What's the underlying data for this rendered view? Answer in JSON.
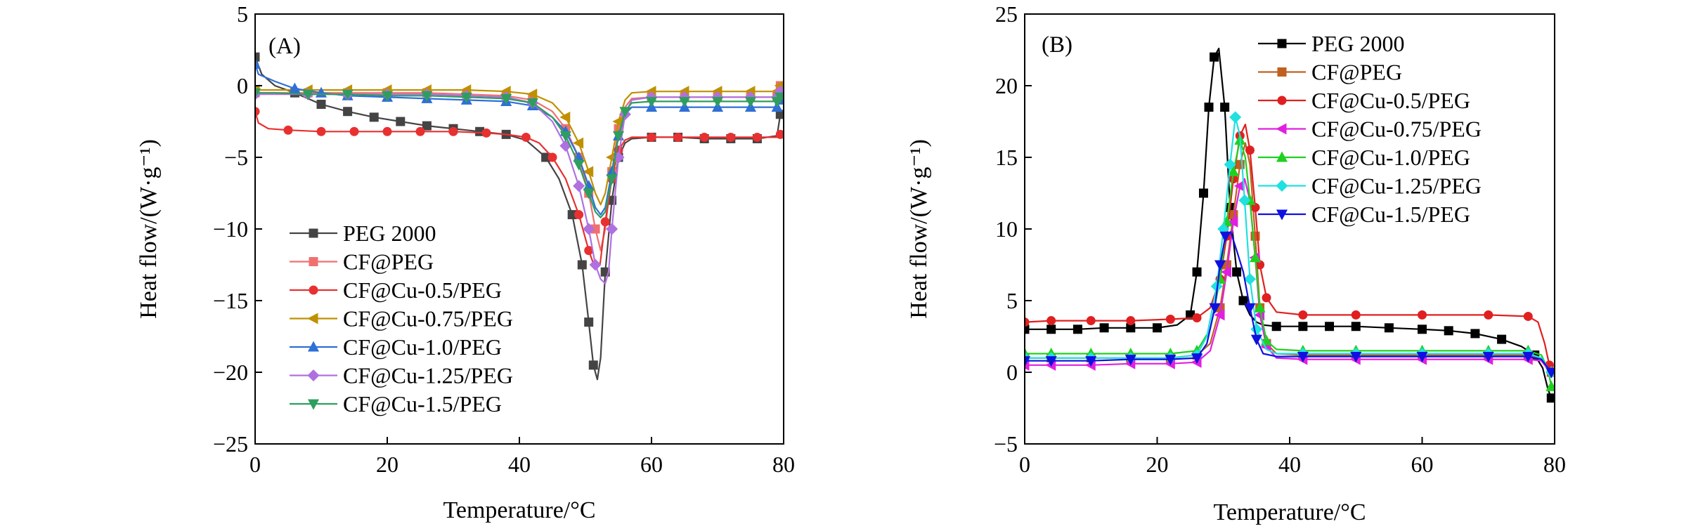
{
  "chart_data": [
    {
      "type": "line",
      "panel": "(A)",
      "xlabel": "Temperature/°C",
      "ylabel": "Heat flow/(W·g⁻¹)",
      "xlim": [
        0,
        80
      ],
      "ylim": [
        -25,
        5
      ],
      "xticks": [
        0,
        20,
        40,
        60,
        80
      ],
      "yticks": [
        5,
        0,
        -5,
        -10,
        -15,
        -20,
        -25
      ],
      "grid": false,
      "legend_position": "bottom-left",
      "series": [
        {
          "name": "PEG 2000",
          "color": "#444444",
          "marker": "square",
          "x": [
            0,
            1,
            3,
            6,
            10,
            14,
            18,
            22,
            26,
            30,
            34,
            38,
            41,
            44,
            46,
            48,
            49.5,
            50.5,
            51.2,
            51.8,
            52.3,
            53,
            54,
            55,
            56,
            57,
            60,
            64,
            68,
            72,
            76,
            79,
            79.5
          ],
          "y": [
            2.0,
            0.8,
            0.0,
            -0.5,
            -1.3,
            -1.8,
            -2.2,
            -2.5,
            -2.8,
            -3.0,
            -3.2,
            -3.4,
            -3.8,
            -5.0,
            -6.5,
            -9.0,
            -12.5,
            -16.5,
            -19.5,
            -20.5,
            -19.0,
            -13.0,
            -8.0,
            -5.0,
            -4.0,
            -3.7,
            -3.6,
            -3.6,
            -3.7,
            -3.7,
            -3.7,
            -3.5,
            -2.0
          ]
        },
        {
          "name": "CF@PEG",
          "color": "#f07070",
          "marker": "square",
          "x": [
            0,
            3,
            8,
            14,
            20,
            26,
            32,
            38,
            42,
            45,
            47,
            49,
            50.5,
            51.5,
            52.3,
            53,
            54,
            55,
            56,
            57,
            60,
            65,
            70,
            75,
            79,
            79.5
          ],
          "y": [
            -0.5,
            -0.5,
            -0.5,
            -0.5,
            -0.5,
            -0.5,
            -0.6,
            -0.7,
            -1.0,
            -1.8,
            -3.0,
            -5.0,
            -7.5,
            -10.0,
            -11.5,
            -10.0,
            -6.0,
            -3.0,
            -1.5,
            -0.9,
            -0.8,
            -0.8,
            -0.8,
            -0.8,
            -0.8,
            0.0
          ]
        },
        {
          "name": "CF@Cu-0.5/PEG",
          "color": "#e83030",
          "marker": "circle",
          "x": [
            0,
            0.5,
            2,
            5,
            10,
            15,
            20,
            25,
            30,
            35,
            38,
            41,
            43,
            45,
            47,
            49,
            50.5,
            51.5,
            52.2,
            53,
            54,
            55,
            56,
            57,
            60,
            64,
            68,
            72,
            76,
            79,
            79.5
          ],
          "y": [
            -1.8,
            -2.6,
            -3.0,
            -3.1,
            -3.2,
            -3.2,
            -3.2,
            -3.2,
            -3.2,
            -3.3,
            -3.4,
            -3.6,
            -4.0,
            -5.0,
            -6.5,
            -9.0,
            -11.5,
            -12.8,
            -12.5,
            -9.5,
            -6.5,
            -4.5,
            -3.8,
            -3.6,
            -3.6,
            -3.6,
            -3.6,
            -3.6,
            -3.6,
            -3.6,
            -3.4
          ]
        },
        {
          "name": "CF@Cu-0.75/PEG",
          "color": "#c09000",
          "marker": "triangle-left",
          "x": [
            0,
            3,
            8,
            14,
            20,
            26,
            32,
            38,
            42,
            45,
            47,
            49,
            50.5,
            51.5,
            52.3,
            53,
            54,
            55,
            56,
            57,
            60,
            65,
            70,
            75,
            79,
            79.5
          ],
          "y": [
            -0.3,
            -0.3,
            -0.3,
            -0.3,
            -0.3,
            -0.3,
            -0.3,
            -0.4,
            -0.6,
            -1.2,
            -2.2,
            -4.0,
            -6.0,
            -7.5,
            -8.3,
            -7.5,
            -5.0,
            -2.5,
            -1.0,
            -0.5,
            -0.4,
            -0.4,
            -0.4,
            -0.4,
            -0.4,
            0.0
          ]
        },
        {
          "name": "CF@Cu-1.0/PEG",
          "color": "#2f6fd6",
          "marker": "triangle-up",
          "x": [
            0,
            0.5,
            3,
            6,
            10,
            14,
            20,
            26,
            32,
            38,
            42,
            45,
            47,
            49,
            50.5,
            51.5,
            52.3,
            53,
            54,
            55,
            56,
            57,
            60,
            65,
            70,
            75,
            79,
            79.5
          ],
          "y": [
            1.5,
            0.8,
            0.3,
            -0.2,
            -0.5,
            -0.7,
            -0.8,
            -0.9,
            -1.0,
            -1.1,
            -1.4,
            -2.2,
            -3.2,
            -5.0,
            -7.0,
            -8.5,
            -9.0,
            -8.5,
            -6.0,
            -3.5,
            -2.0,
            -1.5,
            -1.5,
            -1.5,
            -1.5,
            -1.5,
            -1.5,
            -1.0
          ]
        },
        {
          "name": "CF@Cu-1.25/PEG",
          "color": "#b070e0",
          "marker": "diamond",
          "x": [
            0,
            3,
            8,
            14,
            20,
            26,
            32,
            38,
            42,
            45,
            47,
            49,
            50.5,
            51.5,
            52.3,
            53,
            53.5,
            54,
            55,
            56,
            57,
            60,
            65,
            70,
            75,
            79,
            79.5
          ],
          "y": [
            -0.6,
            -0.6,
            -0.6,
            -0.6,
            -0.6,
            -0.6,
            -0.7,
            -0.8,
            -1.2,
            -2.5,
            -4.2,
            -7.0,
            -10.0,
            -12.5,
            -13.5,
            -13.8,
            -13.0,
            -10.0,
            -5.0,
            -2.0,
            -1.0,
            -0.8,
            -0.8,
            -0.8,
            -0.8,
            -0.8,
            -0.4
          ]
        },
        {
          "name": "CF@Cu-1.5/PEG",
          "color": "#2e9e5e",
          "marker": "triangle-down",
          "x": [
            0,
            3,
            8,
            14,
            20,
            26,
            32,
            38,
            42,
            45,
            47,
            49,
            50.5,
            51.5,
            52.3,
            53,
            54,
            55,
            56,
            57,
            60,
            65,
            70,
            75,
            79,
            79.5
          ],
          "y": [
            -0.5,
            -0.5,
            -0.6,
            -0.6,
            -0.7,
            -0.7,
            -0.8,
            -0.9,
            -1.2,
            -2.2,
            -3.5,
            -5.5,
            -7.5,
            -8.8,
            -9.2,
            -8.8,
            -6.5,
            -3.5,
            -1.8,
            -1.2,
            -1.1,
            -1.1,
            -1.1,
            -1.1,
            -1.1,
            -0.8
          ]
        }
      ]
    },
    {
      "type": "line",
      "panel": "(B)",
      "xlabel": "Temperature/°C",
      "ylabel": "Heat flow/(W·g⁻¹)",
      "xlim": [
        0,
        80
      ],
      "ylim": [
        -5,
        25
      ],
      "xticks": [
        0,
        20,
        40,
        60,
        80
      ],
      "yticks": [
        25,
        20,
        15,
        10,
        5,
        0,
        -5
      ],
      "grid": false,
      "legend_position": "top-right",
      "series": [
        {
          "name": "PEG 2000",
          "color": "#000000",
          "marker": "square",
          "x": [
            0,
            4,
            8,
            12,
            16,
            20,
            23,
            25,
            26,
            27,
            27.8,
            28.6,
            29.3,
            30.2,
            31,
            32,
            33,
            34,
            35,
            36,
            38,
            42,
            46,
            50,
            55,
            60,
            64,
            68,
            72,
            75,
            77,
            78.2,
            79,
            79.5
          ],
          "y": [
            3.0,
            3.0,
            3.0,
            3.1,
            3.1,
            3.1,
            3.3,
            4.0,
            7.0,
            12.5,
            18.5,
            22.0,
            22.6,
            18.5,
            11.5,
            7.0,
            5.0,
            4.0,
            3.5,
            3.3,
            3.2,
            3.2,
            3.2,
            3.2,
            3.1,
            3.0,
            2.9,
            2.7,
            2.3,
            1.8,
            1.2,
            0.3,
            -1.2,
            -1.8
          ]
        },
        {
          "name": "CF@PEG",
          "color": "#c06020",
          "marker": "square",
          "x": [
            0,
            4,
            10,
            16,
            22,
            26,
            28,
            29.5,
            30.5,
            31.5,
            32.5,
            33.3,
            34,
            34.8,
            35.5,
            36.5,
            38,
            42,
            50,
            60,
            70,
            76,
            78,
            79,
            79.5
          ],
          "y": [
            1.0,
            1.0,
            1.0,
            1.0,
            1.0,
            1.2,
            2.0,
            4.5,
            7.5,
            11.0,
            14.5,
            16.0,
            14.5,
            9.5,
            4.5,
            2.0,
            1.3,
            1.2,
            1.2,
            1.2,
            1.2,
            1.2,
            1.0,
            0.3,
            0.0
          ]
        },
        {
          "name": "CF@Cu-0.5/PEG",
          "color": "#e02020",
          "marker": "circle",
          "x": [
            0,
            4,
            10,
            16,
            22,
            26,
            28,
            29.5,
            30.5,
            31.5,
            32.5,
            33.3,
            34,
            34.8,
            35.5,
            36.5,
            38,
            42,
            50,
            60,
            70,
            76,
            77.5,
            78.5,
            79.2,
            79.5
          ],
          "y": [
            3.5,
            3.6,
            3.6,
            3.6,
            3.7,
            3.8,
            4.5,
            6.5,
            9.5,
            13.5,
            16.5,
            17.3,
            15.5,
            11.5,
            7.5,
            5.2,
            4.2,
            4.0,
            4.0,
            4.0,
            4.0,
            3.9,
            3.5,
            2.0,
            0.5,
            0.0
          ]
        },
        {
          "name": "CF@Cu-0.75/PEG",
          "color": "#e020e0",
          "marker": "triangle-left",
          "x": [
            0,
            4,
            10,
            16,
            22,
            26,
            28,
            29.5,
            30.5,
            31.5,
            32.5,
            33.2,
            34,
            34.8,
            35.5,
            36.5,
            38,
            42,
            50,
            60,
            70,
            76,
            78,
            79,
            79.5
          ],
          "y": [
            0.5,
            0.5,
            0.5,
            0.6,
            0.6,
            0.7,
            1.5,
            4.0,
            7.0,
            10.5,
            13.0,
            13.5,
            12.0,
            8.0,
            4.0,
            1.8,
            1.0,
            0.9,
            0.9,
            0.9,
            0.9,
            0.9,
            0.8,
            0.2,
            0.0
          ]
        },
        {
          "name": "CF@Cu-1.0/PEG",
          "color": "#20d020",
          "marker": "triangle-up",
          "x": [
            0,
            4,
            10,
            16,
            22,
            26,
            28,
            29.5,
            30.5,
            31.5,
            32.5,
            33.3,
            34,
            34.8,
            35.5,
            36.5,
            38,
            42,
            50,
            60,
            70,
            76,
            78,
            79,
            79.5
          ],
          "y": [
            1.3,
            1.3,
            1.3,
            1.3,
            1.3,
            1.5,
            3.0,
            6.5,
            10.5,
            14.0,
            16.2,
            15.0,
            12.0,
            8.0,
            4.5,
            2.2,
            1.6,
            1.5,
            1.5,
            1.5,
            1.5,
            1.5,
            1.2,
            0.2,
            -1.0
          ]
        },
        {
          "name": "CF@Cu-1.25/PEG",
          "color": "#20e0e0",
          "marker": "diamond",
          "x": [
            0,
            4,
            10,
            16,
            22,
            26,
            27.5,
            29,
            30,
            31,
            31.8,
            32.5,
            33.2,
            34,
            35,
            36.5,
            38,
            42,
            50,
            60,
            70,
            76,
            78,
            79,
            79.5
          ],
          "y": [
            1.0,
            1.0,
            1.0,
            1.0,
            1.0,
            1.2,
            2.5,
            6.0,
            10.0,
            14.5,
            17.8,
            16.5,
            12.0,
            6.5,
            3.0,
            1.6,
            1.3,
            1.3,
            1.3,
            1.3,
            1.3,
            1.3,
            1.0,
            0.3,
            0.0
          ]
        },
        {
          "name": "CF@Cu-1.5/PEG",
          "color": "#1010e0",
          "marker": "triangle-down",
          "x": [
            0,
            4,
            10,
            16,
            22,
            26,
            27.5,
            28.7,
            29.5,
            30.3,
            31.1,
            32,
            33,
            34,
            35,
            36,
            38,
            42,
            50,
            60,
            70,
            76,
            78,
            79,
            79.5
          ],
          "y": [
            0.8,
            0.8,
            0.8,
            0.9,
            0.9,
            1.0,
            2.0,
            4.5,
            7.5,
            9.5,
            9.8,
            8.5,
            7.0,
            4.5,
            2.3,
            1.3,
            1.1,
            1.1,
            1.1,
            1.1,
            1.1,
            1.1,
            0.9,
            0.3,
            0.0
          ]
        }
      ]
    }
  ]
}
